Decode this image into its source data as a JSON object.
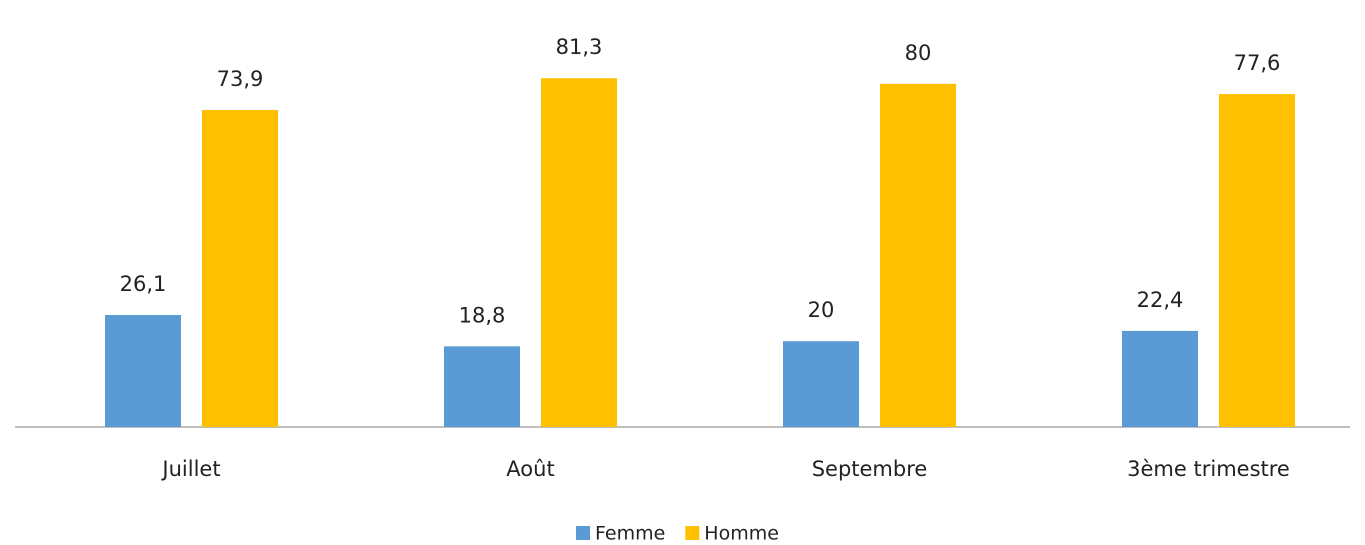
{
  "chart_data": {
    "type": "bar",
    "categories": [
      "Juillet",
      "Août",
      "Septembre",
      "3ème trimestre"
    ],
    "series": [
      {
        "name": "Femme",
        "color": "#5b9bd5",
        "values": [
          26.1,
          18.8,
          20,
          22.4
        ],
        "value_labels": [
          "26,1",
          "18,8",
          "20",
          "22,4"
        ]
      },
      {
        "name": "Homme",
        "color": "#ffc000",
        "values": [
          73.9,
          81.3,
          80,
          77.6
        ],
        "value_labels": [
          "73,9",
          "81,3",
          "80",
          "77,6"
        ]
      }
    ],
    "ylim": [
      0,
      100
    ]
  }
}
